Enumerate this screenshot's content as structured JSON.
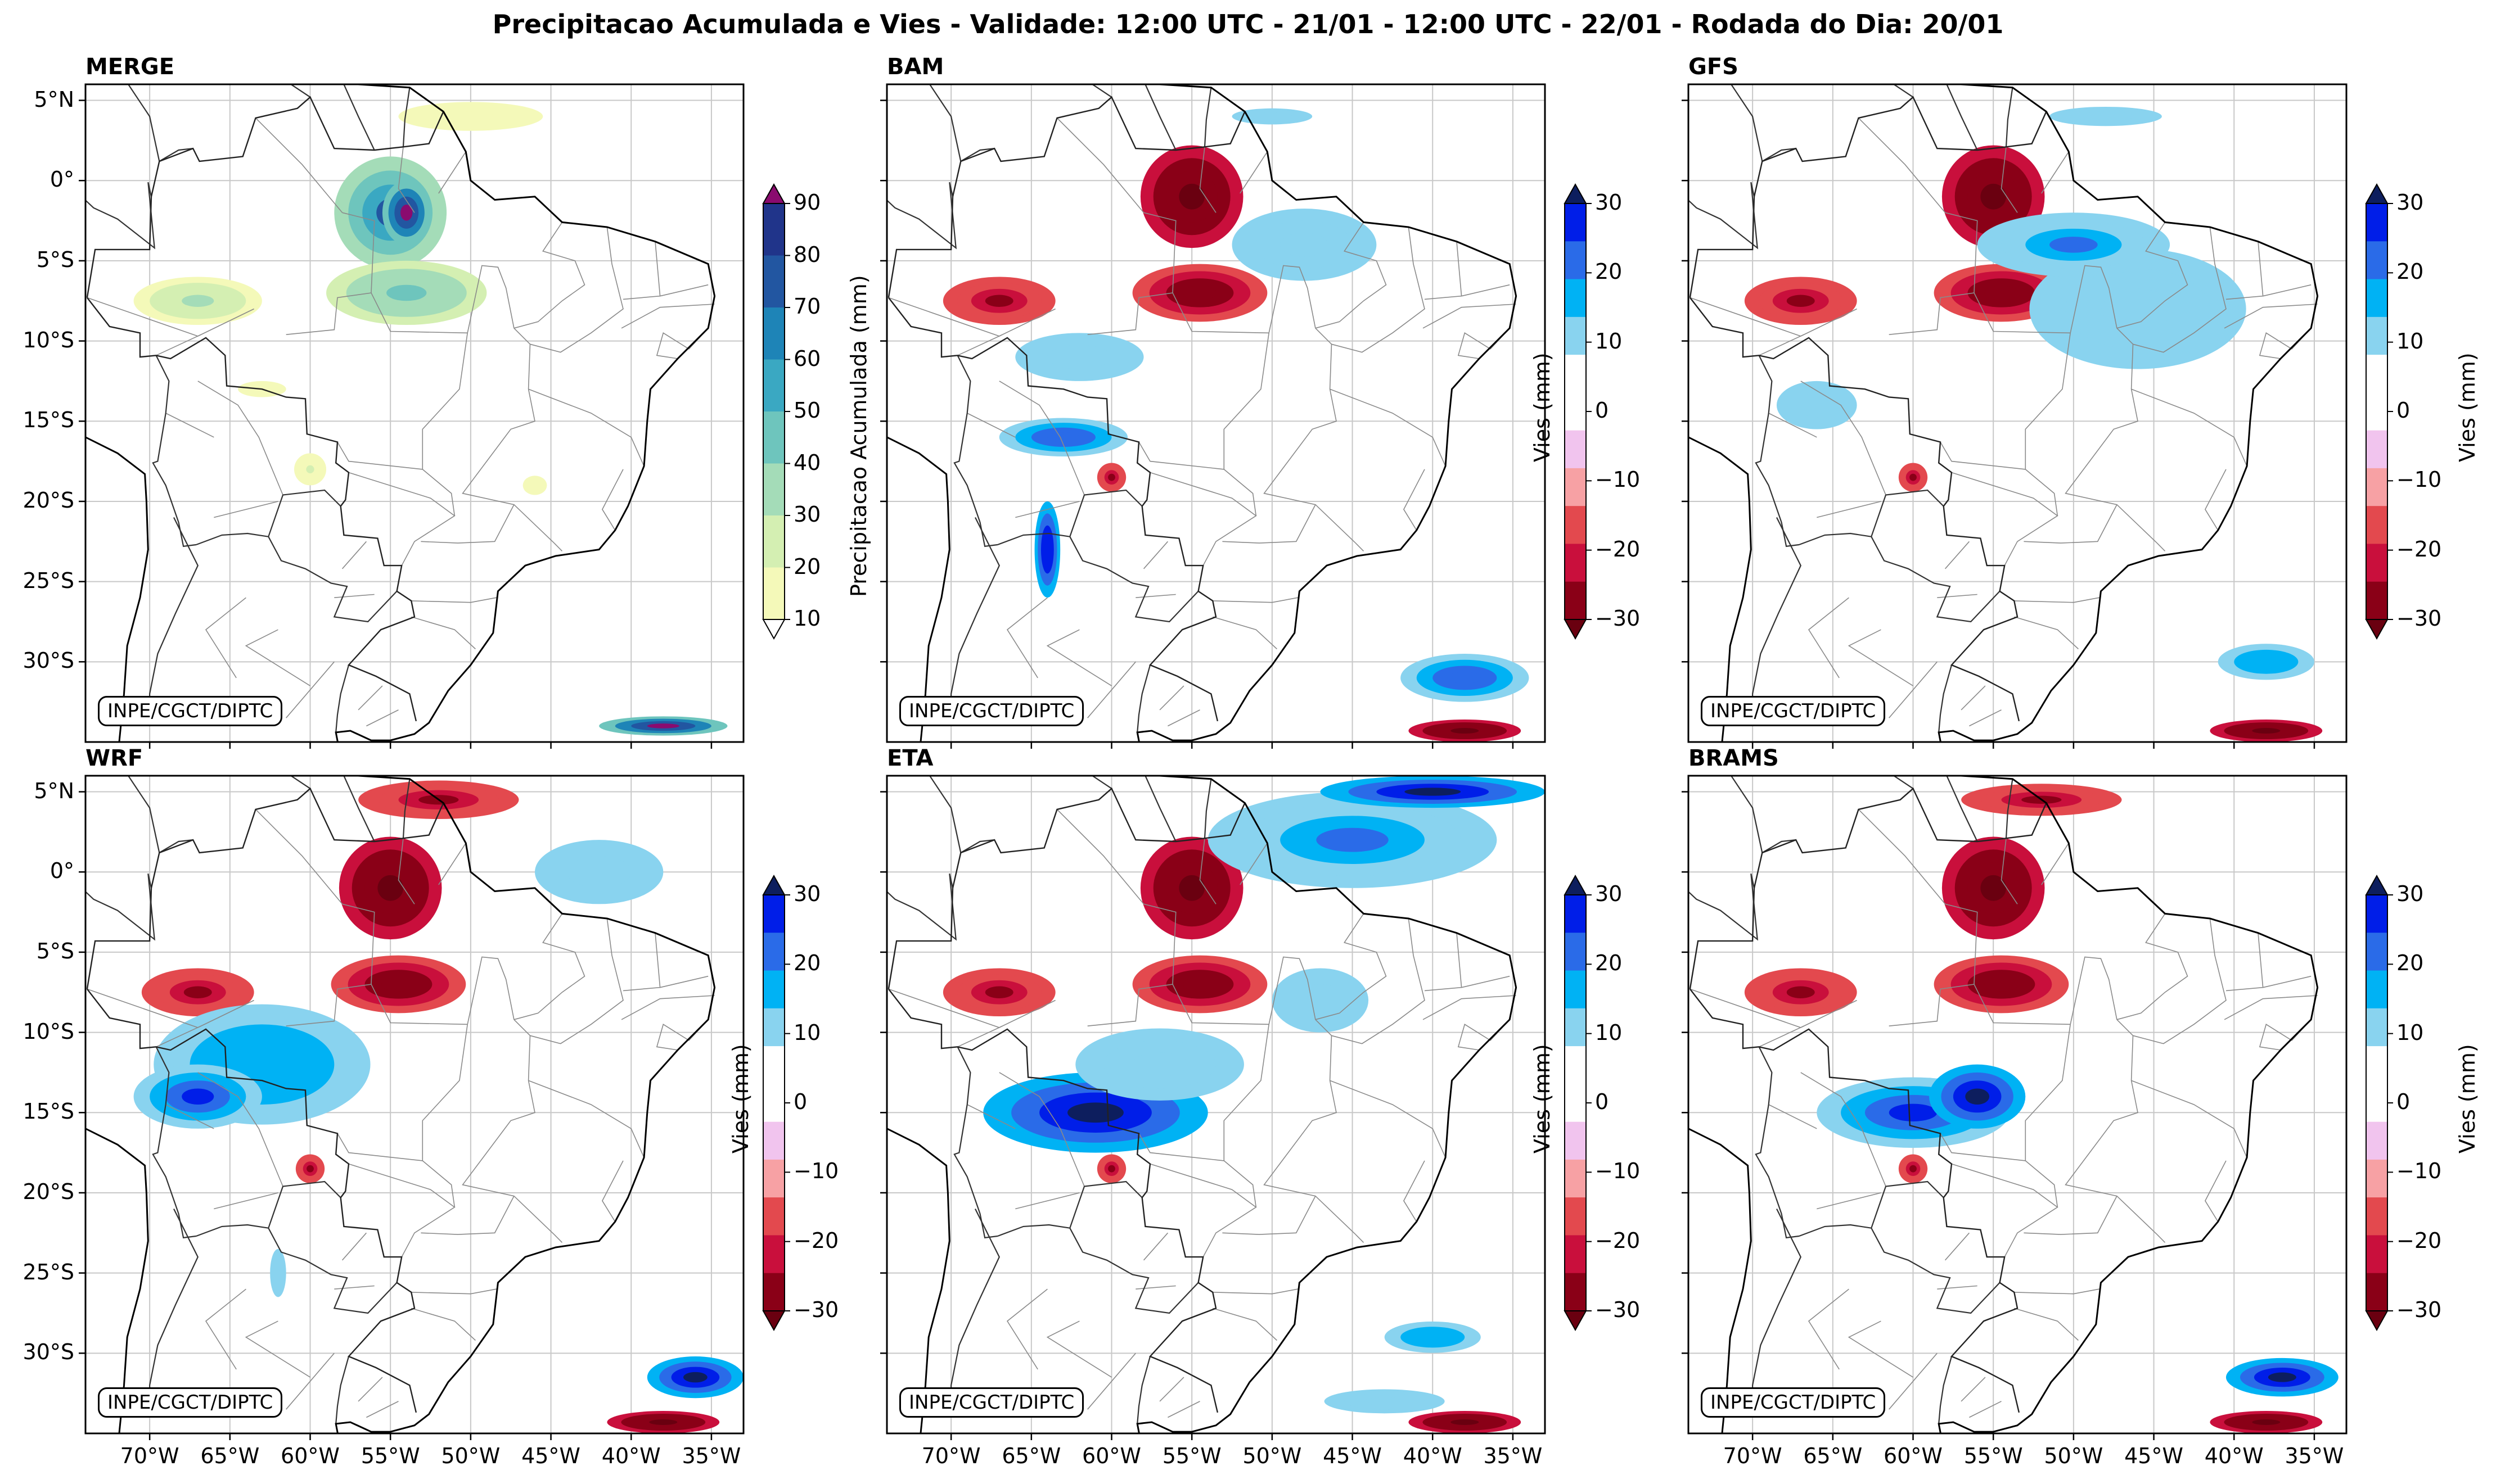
{
  "figure": {
    "title": "Precipitacao Acumulada e Vies - Validade: 12:00 UTC - 21/01 - 12:00 UTC - 22/01 - Rodada do Dia: 20/01",
    "credit": "INPE/CGCT/DIPTC"
  },
  "axes": {
    "lat_labels": [
      "5°N",
      "0°",
      "5°S",
      "10°S",
      "15°S",
      "20°S",
      "25°S",
      "30°S"
    ],
    "lon_labels": [
      "70°W",
      "65°W",
      "60°W",
      "55°W",
      "50°W",
      "45°W",
      "40°W",
      "35°W"
    ],
    "lat_range": [
      -35,
      6
    ],
    "lon_range": [
      -74,
      -33
    ]
  },
  "colorbars": {
    "precip": {
      "label": "Precipitacao Acumulada (mm)",
      "ticks": [
        "10",
        "20",
        "30",
        "40",
        "50",
        "60",
        "70",
        "80",
        "90"
      ],
      "colors": [
        "#f4f9b9",
        "#d4efb2",
        "#a4dcb8",
        "#6ec5bd",
        "#3aa8c2",
        "#1e84b7",
        "#2256a1",
        "#20348a",
        "#0b1d54"
      ],
      "under_color": "#ffffff",
      "over_color": "#8a0b6f"
    },
    "bias": {
      "label": "Vies (mm)",
      "ticks": [
        "30",
        "20",
        "10",
        "0",
        "−10",
        "−20",
        "−30"
      ],
      "colors_top_to_bottom": [
        "#001ee8",
        "#2a6be8",
        "#00b2f4",
        "#89d3ef",
        "#ffffff",
        "#ffffff",
        "#f1c4ee",
        "#f7a1a4",
        "#e3494e",
        "#c90f3c",
        "#8a0017"
      ],
      "over_color": "#0d1e5e",
      "under_color": "#6a0010"
    }
  },
  "panels": [
    {
      "id": "MERGE",
      "title": "MERGE",
      "type": "precip"
    },
    {
      "id": "BAM",
      "title": "BAM",
      "type": "bias"
    },
    {
      "id": "GFS",
      "title": "GFS",
      "type": "bias"
    },
    {
      "id": "WRF",
      "title": "WRF",
      "type": "bias"
    },
    {
      "id": "ETA",
      "title": "ETA",
      "type": "bias"
    },
    {
      "id": "BRAMS",
      "title": "BRAMS",
      "type": "bias"
    }
  ],
  "map_features": {
    "precip_blobs": [
      {
        "lon": -55,
        "lat": -2,
        "rx": 3.5,
        "ry": 3.5,
        "v": 70
      },
      {
        "lon": -54,
        "lat": -2,
        "rx": 1.5,
        "ry": 2.0,
        "v": 95
      },
      {
        "lon": -54,
        "lat": -7,
        "rx": 5.0,
        "ry": 2.0,
        "v": 45
      },
      {
        "lon": -67,
        "lat": -7.5,
        "rx": 4.0,
        "ry": 1.5,
        "v": 30
      },
      {
        "lon": -50,
        "lat": 4,
        "rx": 6.0,
        "ry": 1.2,
        "v": 15
      },
      {
        "lon": -38,
        "lat": -34,
        "rx": 4.0,
        "ry": 0.6,
        "v": 90
      },
      {
        "lon": -60,
        "lat": -18,
        "rx": 1.0,
        "ry": 1.0,
        "v": 20
      },
      {
        "lon": -46,
        "lat": -19,
        "rx": 1.0,
        "ry": 0.8,
        "v": 15
      },
      {
        "lon": -63,
        "lat": -13,
        "rx": 3.0,
        "ry": 1.0,
        "v": 12
      }
    ],
    "bias_blobs": {
      "common": [
        {
          "lon": -55,
          "lat": -1,
          "rx": 3.2,
          "ry": 3.2,
          "v": -35
        },
        {
          "lon": -54.5,
          "lat": -7,
          "rx": 4.2,
          "ry": 1.8,
          "v": -28
        },
        {
          "lon": -67,
          "lat": -7.5,
          "rx": 3.5,
          "ry": 1.5,
          "v": -22
        },
        {
          "lon": -38,
          "lat": -34.3,
          "rx": 3.5,
          "ry": 0.7,
          "v": -32
        },
        {
          "lon": -60,
          "lat": -18.5,
          "rx": 0.9,
          "ry": 0.9,
          "v": -22
        }
      ],
      "BAM": [
        {
          "lon": -48,
          "lat": -4,
          "rx": 6,
          "ry": 3,
          "v": 15
        },
        {
          "lon": -62,
          "lat": -11,
          "rx": 8,
          "ry": 3,
          "v": 12
        },
        {
          "lon": -63,
          "lat": -16,
          "rx": 4,
          "ry": 1.2,
          "v": 25
        },
        {
          "lon": -64,
          "lat": -23,
          "rx": 0.8,
          "ry": 3,
          "v": 30
        },
        {
          "lon": -38,
          "lat": -31,
          "rx": 4,
          "ry": 1.5,
          "v": 25
        },
        {
          "lon": -50,
          "lat": 4,
          "rx": 5,
          "ry": 1,
          "v": 12
        },
        {
          "lon": -52,
          "lat": -16,
          "rx": 6,
          "ry": 4,
          "v": 8
        }
      ],
      "GFS": [
        {
          "lon": -46,
          "lat": -8,
          "rx": 9,
          "ry": 5,
          "v": 15
        },
        {
          "lon": -50,
          "lat": -4,
          "rx": 6,
          "ry": 2,
          "v": 22
        },
        {
          "lon": -55,
          "lat": -15,
          "rx": 7,
          "ry": 4,
          "v": 10
        },
        {
          "lon": -66,
          "lat": -14,
          "rx": 5,
          "ry": 3,
          "v": 12
        },
        {
          "lon": -40,
          "lat": 0,
          "rx": 4,
          "ry": 5,
          "v": 10
        },
        {
          "lon": -38,
          "lat": -30,
          "rx": 4,
          "ry": 1.5,
          "v": 18
        },
        {
          "lon": -48,
          "lat": 4,
          "rx": 7,
          "ry": 1.2,
          "v": 14
        }
      ],
      "WRF": [
        {
          "lon": -63,
          "lat": -12,
          "rx": 9,
          "ry": 5,
          "v": 18
        },
        {
          "lon": -67,
          "lat": -14,
          "rx": 4,
          "ry": 2,
          "v": 28
        },
        {
          "lon": -42,
          "lat": 0,
          "rx": 8,
          "ry": 4,
          "v": 12
        },
        {
          "lon": -47,
          "lat": -9,
          "rx": 5,
          "ry": 6,
          "v": 10
        },
        {
          "lon": -36,
          "lat": -31.5,
          "rx": 3,
          "ry": 1.3,
          "v": 35
        },
        {
          "lon": -52,
          "lat": 4.5,
          "rx": 5,
          "ry": 1.2,
          "v": -20
        },
        {
          "lon": -62,
          "lat": -25,
          "rx": 1,
          "ry": 3,
          "v": 12
        }
      ],
      "ETA": [
        {
          "lon": -61,
          "lat": -15,
          "rx": 7,
          "ry": 2.5,
          "v": 32
        },
        {
          "lon": -57,
          "lat": -12,
          "rx": 7,
          "ry": 3,
          "v": 15
        },
        {
          "lon": -47,
          "lat": -8,
          "rx": 6,
          "ry": 4,
          "v": 14
        },
        {
          "lon": -45,
          "lat": 2,
          "rx": 9,
          "ry": 3,
          "v": 22
        },
        {
          "lon": -40,
          "lat": 5,
          "rx": 7,
          "ry": 1,
          "v": 35
        },
        {
          "lon": -40,
          "lat": -29,
          "rx": 4,
          "ry": 1.3,
          "v": 18
        },
        {
          "lon": -43,
          "lat": -33,
          "rx": 5,
          "ry": 1,
          "v": 15
        },
        {
          "lon": -64,
          "lat": -23,
          "rx": 2,
          "ry": 4,
          "v": 10
        }
      ],
      "BRAMS": [
        {
          "lon": -60,
          "lat": -15,
          "rx": 6,
          "ry": 2.2,
          "v": 26
        },
        {
          "lon": -56,
          "lat": -14,
          "rx": 3,
          "ry": 2,
          "v": 32
        },
        {
          "lon": -48,
          "lat": -9,
          "rx": 7,
          "ry": 5,
          "v": 10
        },
        {
          "lon": -45,
          "lat": 1,
          "rx": 8,
          "ry": 3,
          "v": 10
        },
        {
          "lon": -37,
          "lat": -31.5,
          "rx": 3.5,
          "ry": 1.2,
          "v": 35
        },
        {
          "lon": -52,
          "lat": 4.5,
          "rx": 5,
          "ry": 1,
          "v": -20
        },
        {
          "lon": -66,
          "lat": -28,
          "rx": 1,
          "ry": 3,
          "v": 8
        }
      ]
    }
  }
}
